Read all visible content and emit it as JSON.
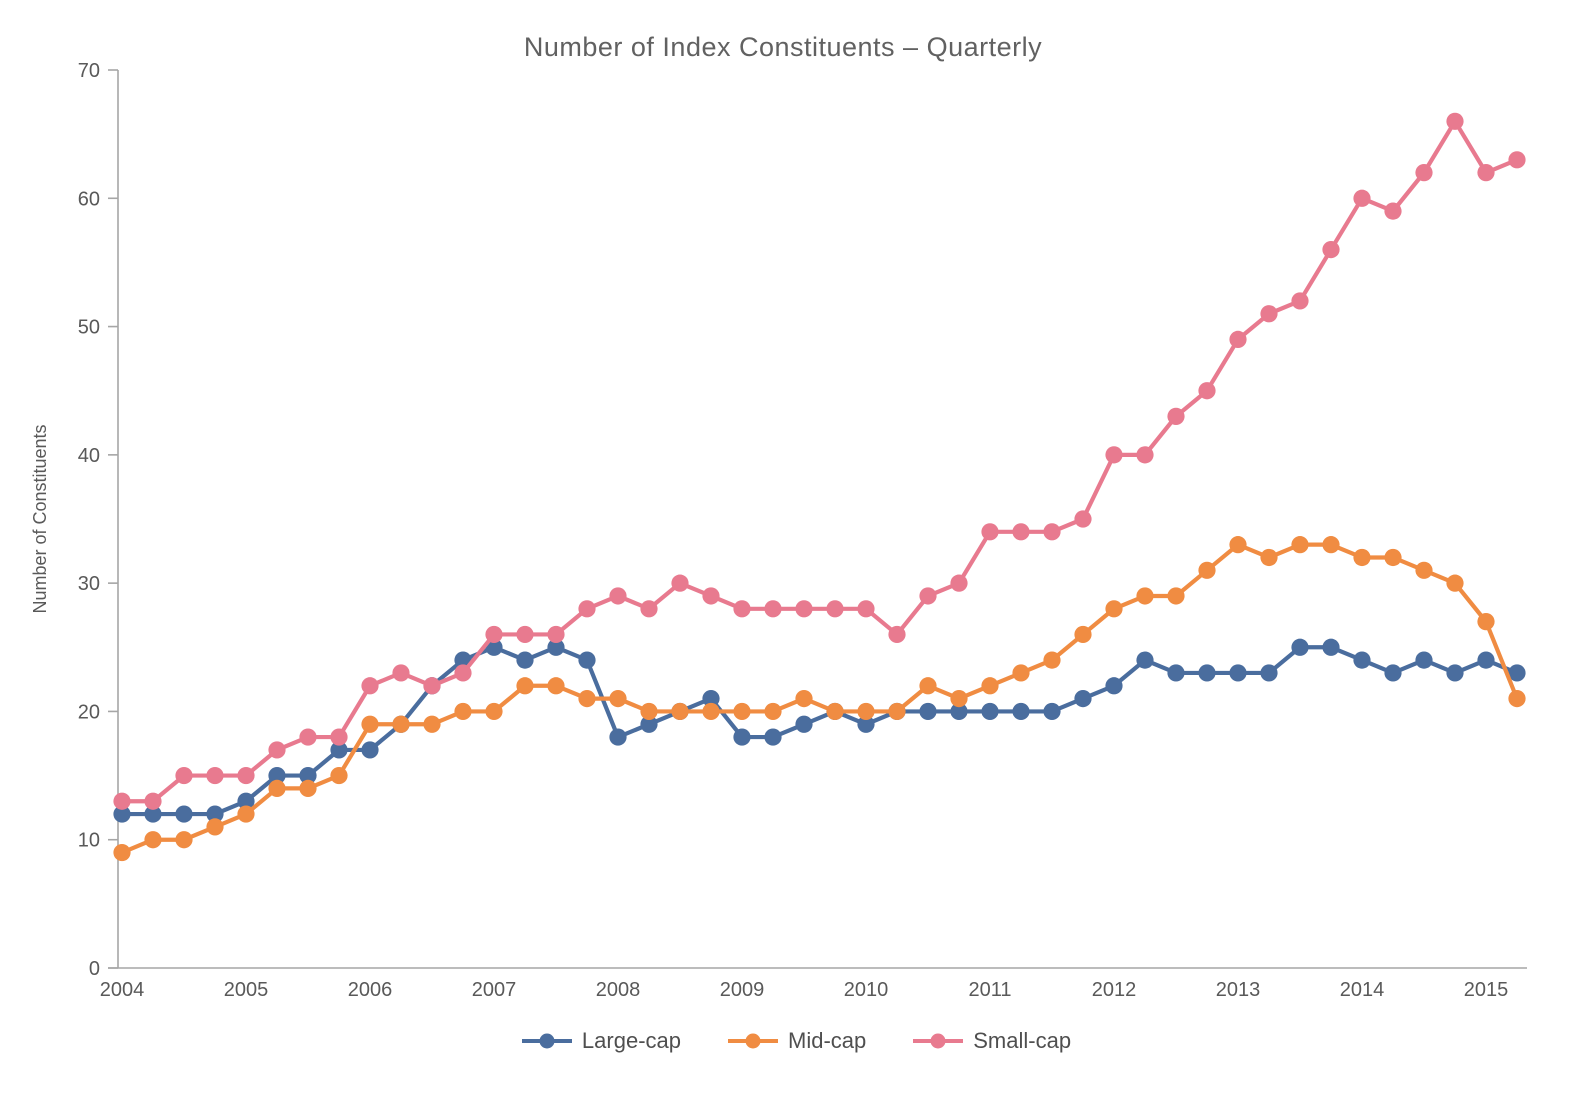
{
  "chart_data": {
    "type": "line",
    "title": "Number of Index Constituents – Quarterly",
    "xlabel": "",
    "ylabel": "Number of Constituents",
    "ylim": [
      0,
      70
    ],
    "y_ticks": [
      0,
      10,
      20,
      30,
      40,
      50,
      60,
      70
    ],
    "x_tick_labels": [
      "2004",
      "2005",
      "2006",
      "2007",
      "2008",
      "2009",
      "2010",
      "2011",
      "2012",
      "2013",
      "2014",
      "2015"
    ],
    "points_per_year": 4,
    "x_start": "2004 Q1",
    "x_end": "2015 Q2",
    "grid": false,
    "legend_position": "bottom-center",
    "style": {
      "axis_color": "#a6a6a6",
      "tick_text_color": "#595959",
      "title_color": "#616161",
      "background": "#ffffff"
    },
    "series": [
      {
        "name": "Large-cap",
        "color": "#4a6d9e",
        "values": [
          12,
          12,
          12,
          12,
          13,
          15,
          15,
          17,
          17,
          19,
          22,
          24,
          25,
          24,
          25,
          24,
          18,
          19,
          20,
          21,
          18,
          18,
          19,
          20,
          19,
          20,
          20,
          20,
          20,
          20,
          20,
          21,
          22,
          24,
          23,
          23,
          23,
          23,
          25,
          25,
          24,
          23,
          24,
          23,
          24,
          23
        ]
      },
      {
        "name": "Mid-cap",
        "color": "#f08c42",
        "values": [
          9,
          10,
          10,
          11,
          12,
          14,
          14,
          15,
          19,
          19,
          19,
          20,
          20,
          22,
          22,
          21,
          21,
          20,
          20,
          20,
          20,
          20,
          21,
          20,
          20,
          20,
          22,
          21,
          22,
          23,
          24,
          26,
          28,
          29,
          29,
          31,
          33,
          32,
          33,
          33,
          32,
          32,
          31,
          30,
          27,
          21
        ]
      },
      {
        "name": "Small-cap",
        "color": "#e87a8f",
        "values": [
          13,
          13,
          15,
          15,
          15,
          17,
          18,
          18,
          22,
          23,
          22,
          23,
          26,
          26,
          26,
          28,
          29,
          28,
          30,
          29,
          28,
          28,
          28,
          28,
          28,
          26,
          29,
          30,
          34,
          34,
          34,
          35,
          40,
          40,
          43,
          45,
          49,
          51,
          52,
          56,
          60,
          59,
          62,
          66,
          62,
          63
        ]
      }
    ]
  }
}
